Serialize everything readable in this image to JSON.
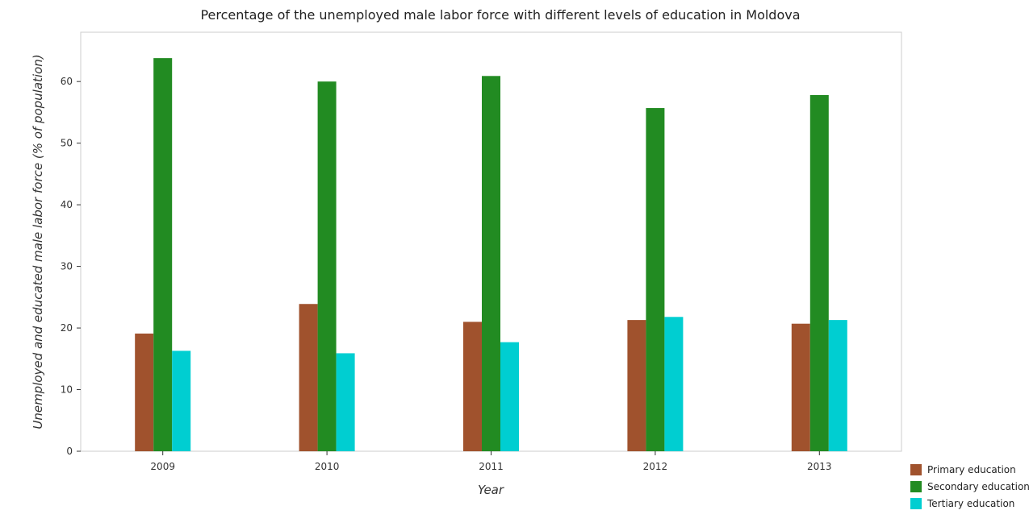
{
  "chart_data": {
    "type": "bar",
    "title": "Percentage of the unemployed male labor force with different levels of education in Moldova",
    "xlabel": "Year",
    "ylabel": "Unemployed and educated male labor force (% of population)",
    "categories": [
      "2009",
      "2010",
      "2011",
      "2012",
      "2013"
    ],
    "ylim": [
      0,
      68
    ],
    "yticks": [
      0,
      10,
      20,
      30,
      40,
      50,
      60
    ],
    "grid": false,
    "legend_position": "bottom-right",
    "series": [
      {
        "name": "Primary education",
        "color": "#a0522d",
        "values": [
          19.1,
          23.9,
          21.0,
          21.3,
          20.7
        ]
      },
      {
        "name": "Secondary education",
        "color": "#228b22",
        "values": [
          63.8,
          60.0,
          60.9,
          55.7,
          57.8
        ]
      },
      {
        "name": "Tertiary education",
        "color": "#00ced1",
        "values": [
          16.3,
          15.9,
          17.7,
          21.8,
          21.3
        ]
      }
    ]
  }
}
